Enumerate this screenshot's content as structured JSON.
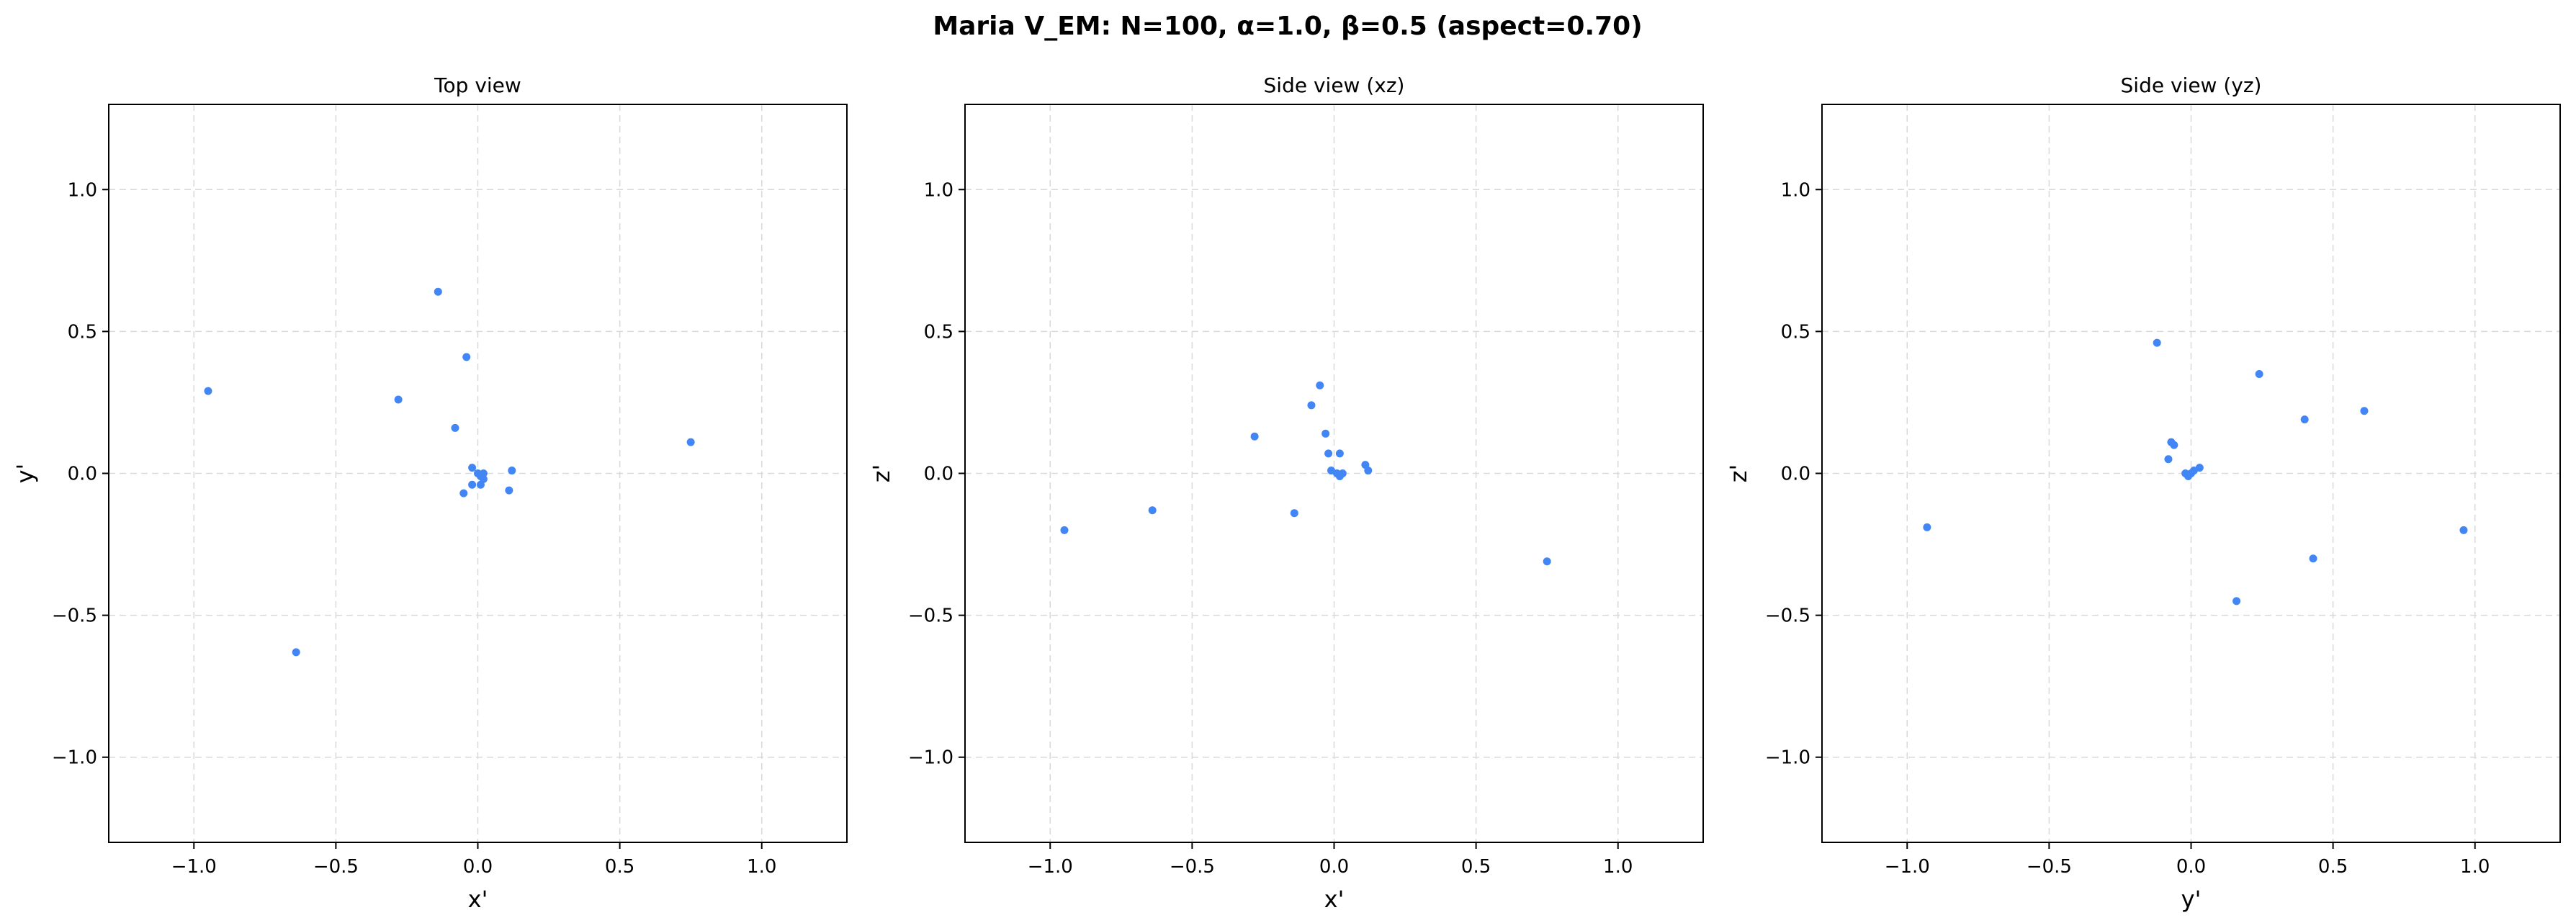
{
  "figure": {
    "suptitle": "Maria V_EM: N=100, α=1.0, β=0.5  (aspect=0.70)"
  },
  "colors": {
    "point": "#4285f4",
    "grid": "#d9d9d9",
    "axes": "#000000"
  },
  "chart_data": [
    {
      "type": "scatter",
      "title": "Top view",
      "xlabel": "x'",
      "ylabel": "y'",
      "xlim": [
        -1.3,
        1.3
      ],
      "ylim": [
        -1.3,
        1.3
      ],
      "xticks": [
        -1.0,
        -0.5,
        0.0,
        0.5,
        1.0
      ],
      "yticks": [
        -1.0,
        -0.5,
        0.0,
        0.5,
        1.0
      ],
      "xtick_labels": [
        "−1.0",
        "−0.5",
        "0.0",
        "0.5",
        "1.0"
      ],
      "ytick_labels": [
        "−1.0",
        "−0.5",
        "0.0",
        "0.5",
        "1.0"
      ],
      "grid": true,
      "points": [
        {
          "x": -0.95,
          "y": 0.29
        },
        {
          "x": -0.64,
          "y": -0.63
        },
        {
          "x": -0.28,
          "y": 0.26
        },
        {
          "x": -0.14,
          "y": 0.64
        },
        {
          "x": -0.08,
          "y": 0.16
        },
        {
          "x": -0.04,
          "y": 0.41
        },
        {
          "x": -0.05,
          "y": -0.07
        },
        {
          "x": -0.02,
          "y": 0.02
        },
        {
          "x": -0.02,
          "y": -0.04
        },
        {
          "x": 0.0,
          "y": 0.0
        },
        {
          "x": 0.01,
          "y": -0.01
        },
        {
          "x": 0.02,
          "y": -0.02
        },
        {
          "x": 0.02,
          "y": 0.0
        },
        {
          "x": 0.01,
          "y": -0.04
        },
        {
          "x": 0.11,
          "y": -0.06
        },
        {
          "x": 0.12,
          "y": 0.01
        },
        {
          "x": 0.75,
          "y": 0.11
        }
      ]
    },
    {
      "type": "scatter",
      "title": "Side view (xz)",
      "xlabel": "x'",
      "ylabel": "z'",
      "xlim": [
        -1.3,
        1.3
      ],
      "ylim": [
        -1.3,
        1.3
      ],
      "xticks": [
        -1.0,
        -0.5,
        0.0,
        0.5,
        1.0
      ],
      "yticks": [
        -1.0,
        -0.5,
        0.0,
        0.5,
        1.0
      ],
      "xtick_labels": [
        "−1.0",
        "−0.5",
        "0.0",
        "0.5",
        "1.0"
      ],
      "ytick_labels": [
        "−1.0",
        "−0.5",
        "0.0",
        "0.5",
        "1.0"
      ],
      "grid": true,
      "points": [
        {
          "x": -0.95,
          "y": -0.2
        },
        {
          "x": -0.64,
          "y": -0.13
        },
        {
          "x": -0.28,
          "y": 0.13
        },
        {
          "x": -0.14,
          "y": -0.14
        },
        {
          "x": -0.08,
          "y": 0.24
        },
        {
          "x": -0.05,
          "y": 0.31
        },
        {
          "x": -0.03,
          "y": 0.14
        },
        {
          "x": -0.02,
          "y": 0.07
        },
        {
          "x": -0.01,
          "y": 0.01
        },
        {
          "x": 0.01,
          "y": 0.0
        },
        {
          "x": 0.02,
          "y": -0.01
        },
        {
          "x": 0.02,
          "y": 0.07
        },
        {
          "x": 0.03,
          "y": 0.0
        },
        {
          "x": 0.11,
          "y": 0.03
        },
        {
          "x": 0.12,
          "y": 0.01
        },
        {
          "x": 0.75,
          "y": -0.31
        }
      ]
    },
    {
      "type": "scatter",
      "title": "Side view (yz)",
      "xlabel": "y'",
      "ylabel": "z'",
      "xlim": [
        -1.3,
        1.3
      ],
      "ylim": [
        -1.3,
        1.3
      ],
      "xticks": [
        -1.0,
        -0.5,
        0.0,
        0.5,
        1.0
      ],
      "yticks": [
        -1.0,
        -0.5,
        0.0,
        0.5,
        1.0
      ],
      "xtick_labels": [
        "−1.0",
        "−0.5",
        "0.0",
        "0.5",
        "1.0"
      ],
      "ytick_labels": [
        "−1.0",
        "−0.5",
        "0.0",
        "0.5",
        "1.0"
      ],
      "grid": true,
      "points": [
        {
          "x": -0.93,
          "y": -0.19
        },
        {
          "x": -0.12,
          "y": 0.46
        },
        {
          "x": -0.08,
          "y": 0.05
        },
        {
          "x": -0.07,
          "y": 0.11
        },
        {
          "x": -0.06,
          "y": 0.1
        },
        {
          "x": -0.02,
          "y": 0.0
        },
        {
          "x": -0.01,
          "y": -0.01
        },
        {
          "x": 0.0,
          "y": 0.0
        },
        {
          "x": 0.01,
          "y": 0.01
        },
        {
          "x": 0.03,
          "y": 0.02
        },
        {
          "x": 0.16,
          "y": -0.45
        },
        {
          "x": 0.24,
          "y": 0.35
        },
        {
          "x": 0.4,
          "y": 0.19
        },
        {
          "x": 0.43,
          "y": -0.3
        },
        {
          "x": 0.61,
          "y": 0.22
        },
        {
          "x": 0.96,
          "y": -0.2
        }
      ]
    }
  ]
}
